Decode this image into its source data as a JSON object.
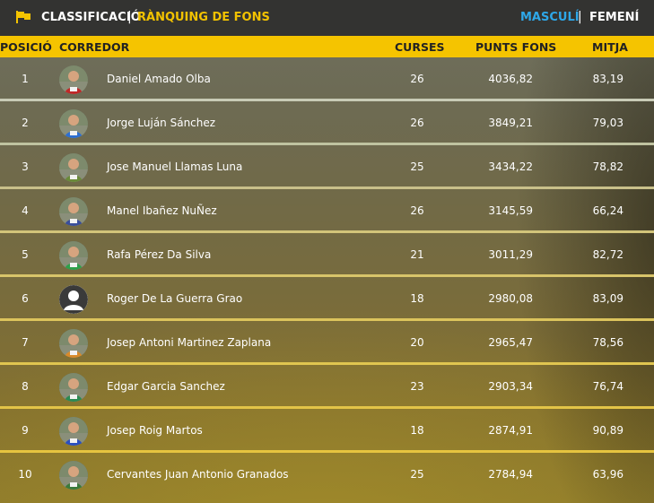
{
  "header": {
    "title": "CLASSIFICACIÓ",
    "separator": "|",
    "subtitle": "RÀNQUING DE FONS",
    "gender_male": "MASCULÍ",
    "gender_female": "FEMENÍ",
    "gender_separator": "|"
  },
  "columns": {
    "position": "POSICIÓ",
    "runner": "CORREDOR",
    "races": "CURSES",
    "points": "PUNTS FONS",
    "average": "MITJA"
  },
  "colors": {
    "accent": "#f5c400",
    "active_gender": "#2ea7e8",
    "topbar": "#333331"
  },
  "rows": [
    {
      "pos": "1",
      "name": "Daniel Amado Olba",
      "races": "26",
      "points": "4036,82",
      "avg": "83,19",
      "avatar": "runner-photo"
    },
    {
      "pos": "2",
      "name": "Jorge Luján Sánchez",
      "races": "26",
      "points": "3849,21",
      "avg": "79,03",
      "avatar": "runner-photo"
    },
    {
      "pos": "3",
      "name": "Jose Manuel Llamas Luna",
      "races": "25",
      "points": "3434,22",
      "avg": "78,82",
      "avatar": "runner-photo"
    },
    {
      "pos": "4",
      "name": "Manel Ibañez NuÑez",
      "races": "26",
      "points": "3145,59",
      "avg": "66,24",
      "avatar": "runner-photo"
    },
    {
      "pos": "5",
      "name": "Rafa Pérez Da Silva",
      "races": "21",
      "points": "3011,29",
      "avg": "82,72",
      "avatar": "runner-photo"
    },
    {
      "pos": "6",
      "name": "Roger De La Guerra Grao",
      "races": "18",
      "points": "2980,08",
      "avg": "83,09",
      "avatar": "default-user"
    },
    {
      "pos": "7",
      "name": "Josep Antoni Martinez Zaplana",
      "races": "20",
      "points": "2965,47",
      "avg": "78,56",
      "avatar": "runner-photo"
    },
    {
      "pos": "8",
      "name": "Edgar Garcia Sanchez",
      "races": "23",
      "points": "2903,34",
      "avg": "76,74",
      "avatar": "runner-photo"
    },
    {
      "pos": "9",
      "name": "Josep Roig Martos",
      "races": "18",
      "points": "2874,91",
      "avg": "90,89",
      "avatar": "runner-photo"
    },
    {
      "pos": "10",
      "name": "Cervantes Juan Antonio Granados",
      "races": "25",
      "points": "2784,94",
      "avg": "63,96",
      "avatar": "runner-photo"
    }
  ]
}
